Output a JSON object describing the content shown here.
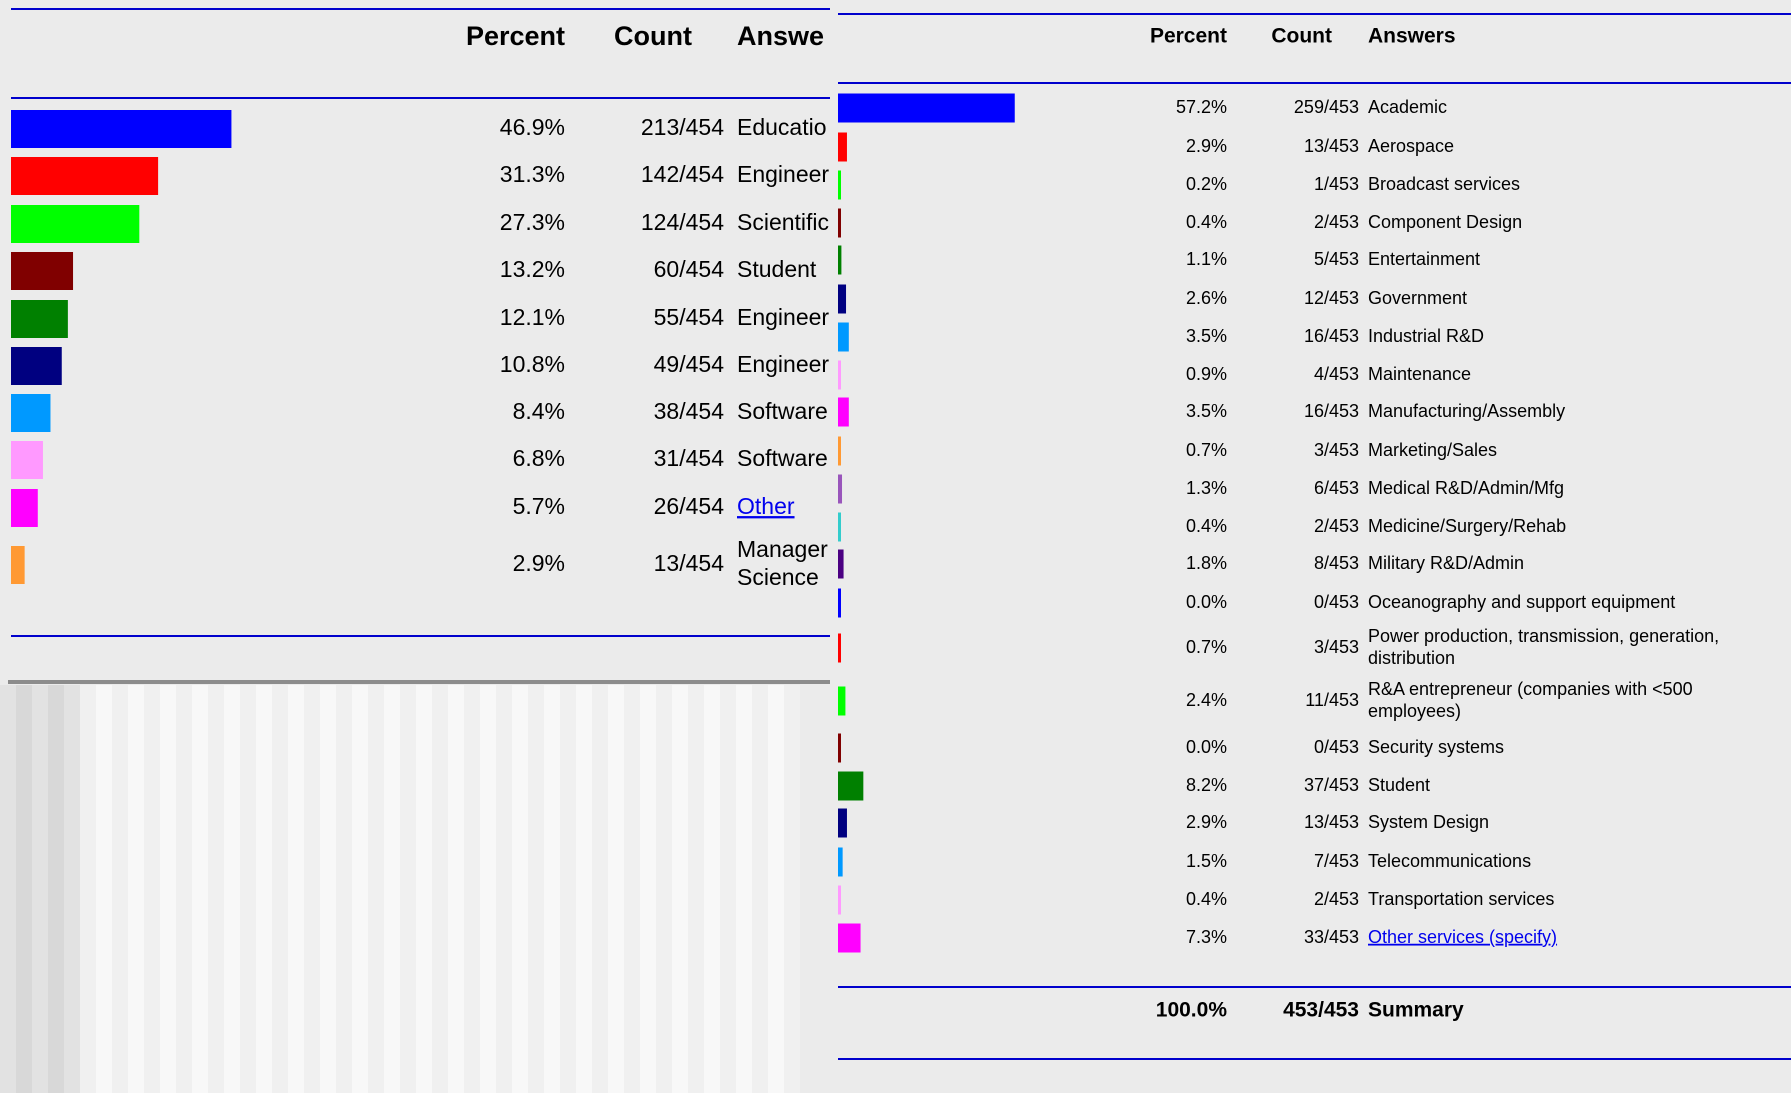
{
  "chart_data": [
    {
      "type": "bar",
      "columns": [
        "Percent",
        "Count",
        "Answe"
      ],
      "categories": [
        "Educatio",
        "Engineer",
        "Scientific",
        "Student",
        "Engineer",
        "Engineer",
        "Software",
        "Software",
        "Other",
        [
          "Manager",
          "Science"
        ]
      ],
      "values": [
        46.9,
        31.3,
        27.3,
        13.2,
        12.1,
        10.8,
        8.4,
        6.8,
        5.7,
        2.9
      ],
      "value_labels": [
        "46.9%",
        "31.3%",
        "27.3%",
        "13.2%",
        "12.1%",
        "10.8%",
        "8.4%",
        "6.8%",
        "5.7%",
        "2.9%"
      ],
      "counts": [
        "213/454",
        "142/454",
        "124/454",
        "60/454",
        "55/454",
        "49/454",
        "38/454",
        "31/454",
        "26/454",
        "13/454"
      ],
      "colors": [
        "#0000ff",
        "#ff0000",
        "#00ff00",
        "#800000",
        "#008000",
        "#000080",
        "#0099ff",
        "#ff99ff",
        "#ff00ff",
        "#ff9933"
      ],
      "linked": [
        8
      ]
    },
    {
      "type": "bar",
      "columns": [
        "Percent",
        "Count",
        "Answers"
      ],
      "categories": [
        "Academic",
        "Aerospace",
        "Broadcast services",
        "Component Design",
        "Entertainment",
        "Government",
        "Industrial R&D",
        "Maintenance",
        "Manufacturing/Assembly",
        "Marketing/Sales",
        "Medical R&D/Admin/Mfg",
        "Medicine/Surgery/Rehab",
        "Military R&D/Admin",
        "Oceanography and support equipment",
        [
          "Power production, transmission, generation,",
          "distribution"
        ],
        [
          "R&A entrepreneur (companies with <500",
          "employees)"
        ],
        "Security systems",
        "Student",
        "System Design",
        "Telecommunications",
        "Transportation services",
        "Other services (specify)"
      ],
      "values": [
        57.2,
        2.9,
        0.2,
        0.4,
        1.1,
        2.6,
        3.5,
        0.9,
        3.5,
        0.7,
        1.3,
        0.4,
        1.8,
        0.0,
        0.7,
        2.4,
        0.0,
        8.2,
        2.9,
        1.5,
        0.4,
        7.3
      ],
      "value_labels": [
        "57.2%",
        "2.9%",
        "0.2%",
        "0.4%",
        "1.1%",
        "2.6%",
        "3.5%",
        "0.9%",
        "3.5%",
        "0.7%",
        "1.3%",
        "0.4%",
        "1.8%",
        "0.0%",
        "0.7%",
        "2.4%",
        "0.0%",
        "8.2%",
        "2.9%",
        "1.5%",
        "0.4%",
        "7.3%"
      ],
      "counts": [
        "259/453",
        "13/453",
        "1/453",
        "2/453",
        "5/453",
        "12/453",
        "16/453",
        "4/453",
        "16/453",
        "3/453",
        "6/453",
        "2/453",
        "8/453",
        "0/453",
        "3/453",
        "11/453",
        "0/453",
        "37/453",
        "13/453",
        "7/453",
        "2/453",
        "33/453"
      ],
      "colors": [
        "#0000ff",
        "#ff0000",
        "#00ff00",
        "#800000",
        "#008000",
        "#000080",
        "#0099ff",
        "#ff99ff",
        "#ff00ff",
        "#ff9933",
        "#9955bb",
        "#33cccc",
        "#4b0082",
        "#0000ff",
        "#ff0000",
        "#00ff00",
        "#800000",
        "#008000",
        "#000080",
        "#0099ff",
        "#ff99ff",
        "#ff00ff"
      ],
      "linked": [
        21
      ],
      "summary": {
        "percent": "100.0%",
        "count": "453/453",
        "label": "Summary"
      }
    }
  ]
}
